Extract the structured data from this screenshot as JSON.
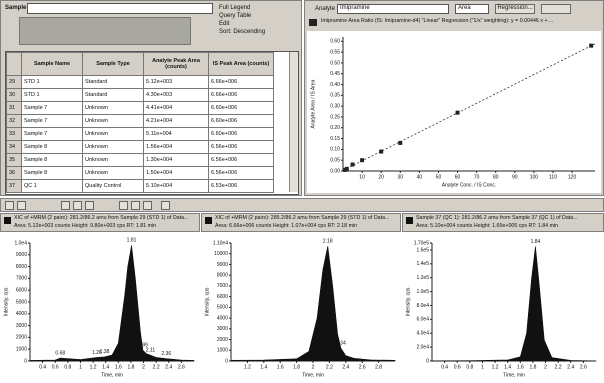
{
  "sample_panel": {
    "label": "Sample",
    "options": [
      "Full Legend",
      "Query Table",
      "Edit",
      "Sort: Descending"
    ],
    "table": {
      "headers": [
        "Sample Name",
        "Sample Type",
        "Analyte Peak Area (counts)",
        "IS Peak Area (counts)"
      ],
      "rows": [
        [
          "29",
          "STD 1",
          "Standard",
          "5.12e+003",
          "6.66e+006"
        ],
        [
          "30",
          "STD 1",
          "Standard",
          "4.30e+003",
          "6.66e+006"
        ],
        [
          "31",
          "Sample 7",
          "Unknown",
          "4.41e+004",
          "6.60e+006"
        ],
        [
          "32",
          "Sample 7",
          "Unknown",
          "4.21e+004",
          "6.60e+006"
        ],
        [
          "33",
          "Sample 7",
          "Unknown",
          "5.11e+004",
          "6.60e+006"
        ],
        [
          "34",
          "Sample 8",
          "Unknown",
          "1.56e+004",
          "6.56e+006"
        ],
        [
          "35",
          "Sample 8",
          "Unknown",
          "1.30e+004",
          "6.56e+006"
        ],
        [
          "36",
          "Sample 8",
          "Unknown",
          "1.50e+004",
          "6.56e+006"
        ],
        [
          "37",
          "QC 1",
          "Quality Control",
          "5.10e+004",
          "6.53e+006"
        ]
      ]
    }
  },
  "calibration_toolbar": {
    "analyte_label": "Analyte",
    "analyte": "Imipramine",
    "area": "Area",
    "regression_button": "Regression..."
  },
  "chart_data": [
    {
      "type": "scatter",
      "subtitle": "Imipramine Area Ratio (IS: Imipramine-d4) \"Linear\" Regression (\"1/x\" weighting): y = 0.00446 x + ...",
      "x_label": "Analyte Conc. / IS Conc.",
      "y_label": "Analyte Area / IS Area",
      "color": "#222222",
      "x": [
        1,
        2,
        5,
        10,
        20,
        30,
        60,
        130
      ],
      "values": [
        0.005,
        0.01,
        0.03,
        0.05,
        0.09,
        0.13,
        0.27,
        0.58
      ],
      "xlim": [
        0,
        132
      ],
      "xticks": [
        10,
        20,
        30,
        40,
        50,
        60,
        70,
        80,
        90,
        100,
        110,
        120
      ],
      "ylim": [
        0,
        0.62
      ],
      "yticks": [
        {
          "value": 0,
          "label": "0.00"
        },
        {
          "value": 0.05,
          "label": "0.05"
        },
        {
          "value": 0.1,
          "label": "0.10"
        },
        {
          "value": 0.15,
          "label": "0.15"
        },
        {
          "value": 0.2,
          "label": "0.20"
        },
        {
          "value": 0.25,
          "label": "0.25"
        },
        {
          "value": 0.3,
          "label": "0.30"
        },
        {
          "value": 0.35,
          "label": "0.35"
        },
        {
          "value": 0.4,
          "label": "0.40"
        },
        {
          "value": 0.45,
          "label": "0.45"
        },
        {
          "value": 0.5,
          "label": "0.50"
        },
        {
          "value": 0.55,
          "label": "0.55"
        },
        {
          "value": 0.6,
          "label": "0.60"
        }
      ]
    },
    {
      "type": "area",
      "title": "XIC of +MRM (2 pairs): 281.2/86.2 amu from Sample 29 (STD 1) of Data...",
      "subtitle": "Area: 5.12e+003 counts  Height: 9.80e+003 cps  RT: 1.81 min",
      "x_label": "Time, min",
      "y_label": "Intensity, cps",
      "color": "#111111",
      "x": [
        0.2,
        0.6,
        0.68,
        1.0,
        1.26,
        1.38,
        1.5,
        1.6,
        1.7,
        1.75,
        1.81,
        1.87,
        1.95,
        1.99,
        2.05,
        2.11,
        2.2,
        2.36,
        2.6,
        2.8
      ],
      "values": [
        50,
        80,
        250,
        120,
        300,
        350,
        500,
        1500,
        5500,
        8000,
        9800,
        7000,
        2500,
        900,
        600,
        500,
        300,
        200,
        80,
        50
      ],
      "peak_labels": [
        0.68,
        1.26,
        1.38,
        1.81,
        1.99,
        2.11,
        2.36
      ],
      "xlim": [
        0.2,
        2.8
      ],
      "xticks": [
        0.4,
        0.6,
        0.8,
        1.0,
        1.2,
        1.4,
        1.6,
        1.8,
        2.0,
        2.2,
        2.4,
        2.6
      ],
      "ylim": [
        0,
        10000
      ],
      "yticks": [
        0,
        1000,
        2000,
        3000,
        4000,
        5000,
        6000,
        7000,
        8000,
        9000,
        {
          "value": 10000,
          "label": "1.0e4"
        }
      ]
    },
    {
      "type": "area",
      "title": "XIC of +MRM (2 pairs): 285.2/86.2 amu from Sample 29 (STD 1) of Data...",
      "subtitle": "Area: 6.66e+006 counts  Height: 1.07e+004 cps  RT: 2.18 min",
      "x_label": "Time, min",
      "y_label": "Intensity, cps",
      "color": "#111111",
      "x": [
        1.0,
        1.4,
        1.8,
        1.95,
        2.05,
        2.12,
        2.18,
        2.24,
        2.3,
        2.34,
        2.4,
        2.5,
        2.7,
        3.0
      ],
      "values": [
        60,
        90,
        200,
        900,
        4000,
        8500,
        10700,
        7000,
        2500,
        1200,
        500,
        250,
        100,
        60
      ],
      "peak_labels": [
        2.18,
        2.34
      ],
      "xlim": [
        1.0,
        3.0
      ],
      "xticks": [
        1.2,
        1.4,
        1.6,
        1.8,
        2.0,
        2.2,
        2.4,
        2.6,
        2.8
      ],
      "ylim": [
        0,
        11000
      ],
      "yticks": [
        0,
        1000,
        2000,
        3000,
        4000,
        5000,
        6000,
        7000,
        8000,
        9000,
        10000,
        {
          "value": 11000,
          "label": "1.10e4"
        }
      ]
    },
    {
      "type": "area",
      "title": "Sample 37 (QC 1): 281.2/86.2 amu from Sample 37 (QC 1) of Data...",
      "subtitle": "Area: 5.10e+004 counts  Height: 1.65e+005 cps  RT: 1.84 min",
      "x_label": "Time, min",
      "y_label": "Intensity, cps",
      "color": "#111111",
      "x": [
        0.2,
        0.8,
        1.4,
        1.6,
        1.7,
        1.78,
        1.84,
        1.9,
        1.98,
        2.1,
        2.4,
        2.8
      ],
      "values": [
        200,
        400,
        1500,
        6000,
        40000,
        120000,
        165000,
        110000,
        30000,
        5000,
        800,
        200
      ],
      "peak_labels": [
        1.84
      ],
      "xlim": [
        0.2,
        2.8
      ],
      "xticks": [
        0.4,
        0.6,
        0.8,
        1.0,
        1.2,
        1.4,
        1.6,
        1.8,
        2.0,
        2.2,
        2.4,
        2.6
      ],
      "ylim": [
        0,
        170000
      ],
      "yticks": [
        0,
        {
          "value": 20000,
          "label": "2.0e4"
        },
        {
          "value": 40000,
          "label": "4.0e4"
        },
        {
          "value": 60000,
          "label": "6.0e4"
        },
        {
          "value": 80000,
          "label": "8.0e4"
        },
        {
          "value": 100000,
          "label": "1.0e5"
        },
        {
          "value": 120000,
          "label": "1.2e5"
        },
        {
          "value": 140000,
          "label": "1.4e5"
        },
        {
          "value": 160000,
          "label": "1.6e5"
        },
        {
          "value": 170000,
          "label": "1.70e5"
        }
      ]
    }
  ]
}
